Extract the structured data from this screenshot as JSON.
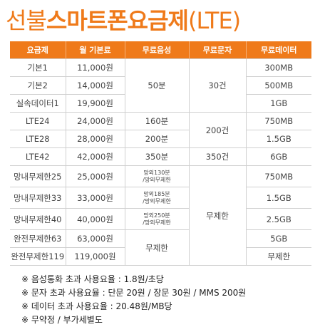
{
  "header": {
    "title": {
      "prefix": "선불",
      "main": "스마트폰요금제",
      "suffix": "(LTE)"
    }
  },
  "table": {
    "columns": [
      "요금제",
      "월 기본료",
      "무료음성",
      "무료문자",
      "무료데이터"
    ],
    "rows": [
      [
        "기본1",
        "11,000원",
        "50분",
        "30건",
        "300MB"
      ],
      [
        "기본2",
        "14,000원",
        "500MB"
      ],
      [
        "실속데이터1",
        "19,900원",
        "1GB"
      ],
      [
        "LTE24",
        "24,000원",
        "160분",
        "200건",
        "750MB"
      ],
      [
        "LTE28",
        "28,000원",
        "200분",
        "1.5GB"
      ],
      [
        "LTE42",
        "42,000원",
        "350분",
        "350건",
        "6GB"
      ],
      [
        "망내무제한25",
        "25,000원",
        [
          "망외130분",
          "/망외무제한"
        ],
        "무제한",
        "750MB"
      ],
      [
        "망내무제한33",
        "33,000원",
        [
          "망외185분",
          "/망외무제한"
        ],
        "1.5GB"
      ],
      [
        "망내무제한40",
        "40,000원",
        [
          "망외250분",
          "/망외무제한"
        ],
        "2.5GB"
      ],
      [
        "완전무제한63",
        "63,000원",
        "무제한",
        "5GB"
      ],
      [
        "완전무제한119",
        "119,000원",
        "무제한"
      ]
    ]
  },
  "notes": [
    "※ 음성통화 초과 사용요율 : 1.8원/초당",
    "※ 문자 초과 사용요율 : 단문 20원 / 장문 30원 / MMS 200원",
    "※ 데이터 초과 사용요율 : 20.48원/MB당",
    "※ 무약정 / 부가세별도"
  ]
}
